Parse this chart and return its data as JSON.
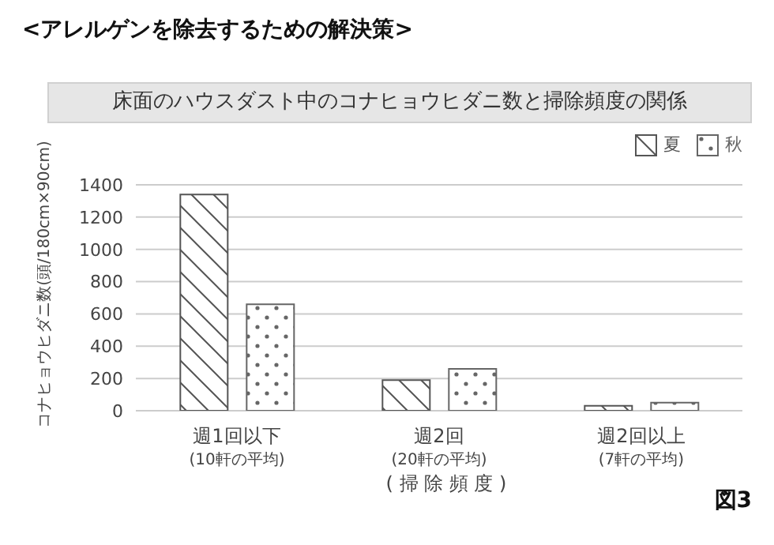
{
  "chart_data": {
    "type": "bar",
    "title": "<アレルゲンを除去するための解決策>",
    "subtitle": "床面のハウスダスト中のコナヒョウヒダニ数と掃除頻度の関係",
    "xlabel": "( 掃 除 頻 度 )",
    "ylabel": "コナヒョウヒダニ数(頭/180cm×90cm)",
    "annotations": [
      "図3"
    ],
    "categories": [
      "週1回以下\n(10軒の平均)",
      "週2回\n(20軒の平均)",
      "週2回以上\n(7軒の平均)"
    ],
    "series": [
      {
        "name": "夏",
        "color": "#555555",
        "values": [
          1340,
          190,
          30
        ]
      },
      {
        "name": "秋",
        "color": "#666666",
        "values": [
          660,
          260,
          50
        ]
      }
    ],
    "ylim": [
      0,
      1400
    ],
    "yticks": [
      0,
      200,
      400,
      600,
      800,
      1000,
      1200,
      1400
    ],
    "grid": "y",
    "legend": "top right"
  }
}
